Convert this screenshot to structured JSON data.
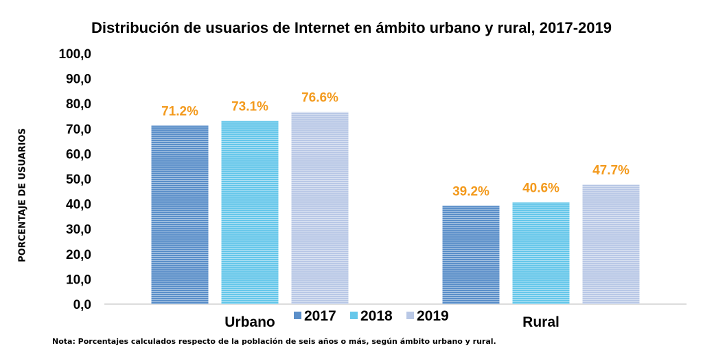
{
  "chart_data": {
    "type": "bar",
    "title": "Distribución de usuarios de Internet en ámbito urbano y rural, 2017-2019",
    "ylabel": "PORCENTAJE DE USUARIOS",
    "xlabel": "",
    "categories": [
      "Urbano",
      "Rural"
    ],
    "series": [
      {
        "name": "2017",
        "values": [
          71.2,
          39.2
        ],
        "labels": [
          "71.2%",
          "39.2%"
        ],
        "color": "#5b8fc9"
      },
      {
        "name": "2018",
        "values": [
          73.1,
          40.6
        ],
        "labels": [
          "73.1%",
          "40.6%"
        ],
        "color": "#66c7ea"
      },
      {
        "name": "2019",
        "values": [
          76.6,
          47.7
        ],
        "labels": [
          "76.6%",
          "47.7%"
        ],
        "color": "#b9c8e6"
      }
    ],
    "ylim": [
      0,
      100
    ],
    "yticks": [
      "0,0",
      "10,0",
      "20,0",
      "30,0",
      "40,0",
      "50,0",
      "60,0",
      "70,0",
      "80,0",
      "90,0",
      "100,0"
    ],
    "grid": false,
    "legend": "bottom-center",
    "label_color": "#f39a1d"
  },
  "note": "Nota: Porcentajes calculados respecto de la población de seis años o más, según ámbito urbano y rural."
}
